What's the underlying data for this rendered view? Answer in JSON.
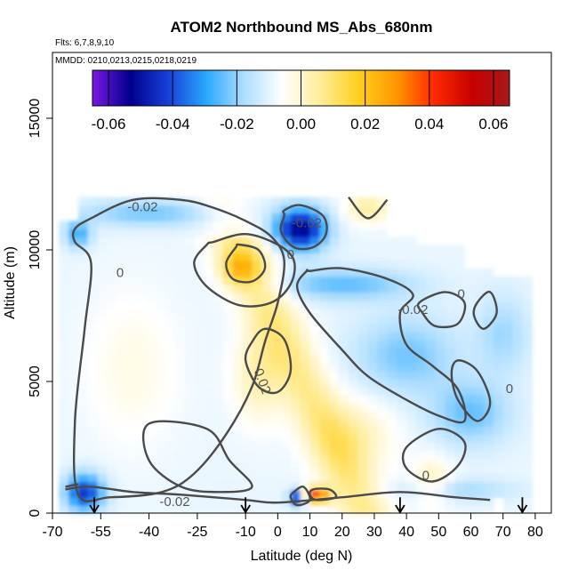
{
  "chart_data": {
    "type": "heatmap",
    "title": "ATOM2 Northbound MS_Abs_680nm",
    "subtitle_flights": "Flts: 6,7,8,9,10",
    "subtitle_dates": "MMDD: 0210,0213,0215,0218,0219",
    "xlabel": "Latitude (deg N)",
    "ylabel": "Altitude (m)",
    "xlim": [
      -70,
      85
    ],
    "ylim": [
      0,
      17500
    ],
    "x_ticks": [
      -70,
      -55,
      -40,
      -25,
      -10,
      0,
      10,
      20,
      30,
      40,
      50,
      60,
      70,
      80
    ],
    "y_ticks": [
      0,
      5000,
      10000,
      15000
    ],
    "colorbar": {
      "range": [
        -0.065,
        0.065
      ],
      "ticks": [
        -0.06,
        -0.04,
        -0.02,
        0.0,
        0.02,
        0.04,
        0.06
      ],
      "tick_labels": [
        "-0.06",
        "-0.04",
        "-0.02",
        "0.00",
        "0.02",
        "0.04",
        "0.06"
      ],
      "colors": [
        "#7a17e6",
        "#00008c",
        "#1740d8",
        "#29a8ff",
        "#aedeff",
        "#ffffff",
        "#ffed9a",
        "#ffd020",
        "#ff9800",
        "#ff2a00",
        "#c80000",
        "#a51a1a"
      ]
    },
    "contour_labels": [
      {
        "text": "-0.02",
        "lat": -42,
        "alt": 11600
      },
      {
        "text": "-0.02",
        "lat": 9,
        "alt": 11000
      },
      {
        "text": "0",
        "lat": 4,
        "alt": 9800
      },
      {
        "text": "0",
        "lat": -49,
        "alt": 9100
      },
      {
        "text": "0.02",
        "lat": -5,
        "alt": 5000
      },
      {
        "text": "0",
        "lat": 57,
        "alt": 8300
      },
      {
        "text": "-0.02",
        "lat": 42,
        "alt": 7700
      },
      {
        "text": "0",
        "lat": 72,
        "alt": 4700
      },
      {
        "text": "0",
        "lat": 46,
        "alt": 1400
      },
      {
        "text": "-0.02",
        "lat": -32,
        "alt": 400
      }
    ],
    "flight_markers_lat": [
      -57,
      -10,
      38,
      76
    ]
  }
}
